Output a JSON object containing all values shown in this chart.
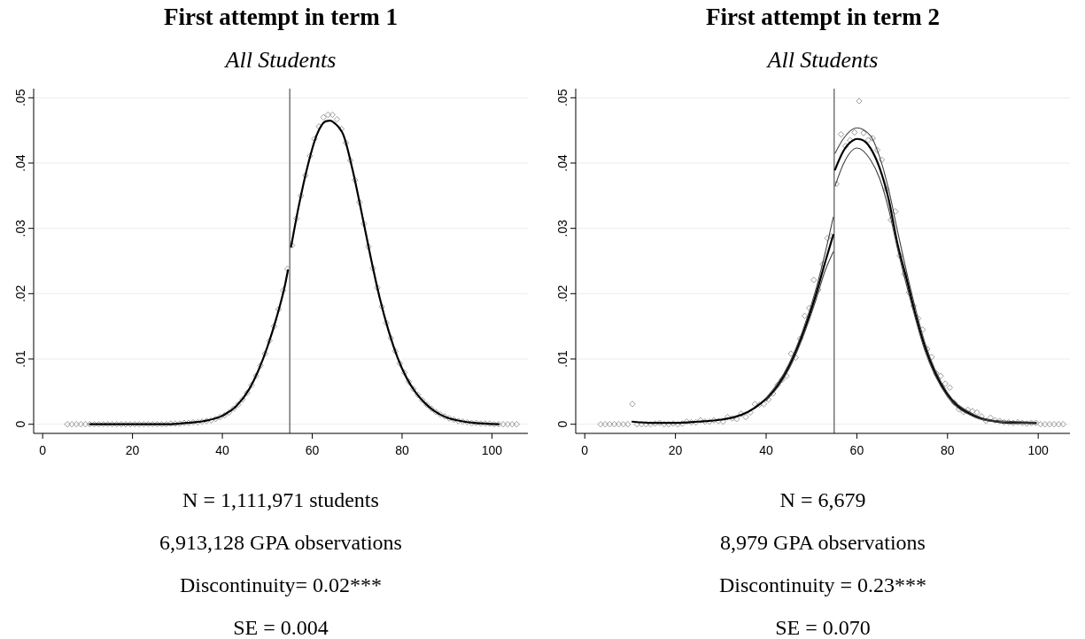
{
  "chart_data": [
    {
      "type": "scatter",
      "title": "First attempt in term 1",
      "subtitle": "All Students",
      "grid": "y",
      "xlim": [
        -2,
        108
      ],
      "ylim": [
        -0.0014,
        0.0514
      ],
      "xticks": [
        0,
        20,
        40,
        60,
        80,
        100
      ],
      "yticks": [
        {
          "value": 0,
          "label": "0"
        },
        {
          "value": 0.01,
          "label": ".01"
        },
        {
          "value": 0.02,
          "label": ".02"
        },
        {
          "value": 0.03,
          "label": ".03"
        },
        {
          "value": 0.04,
          "label": ".04"
        },
        {
          "value": 0.05,
          "label": ".05"
        }
      ],
      "ref_lines": [
        {
          "axis": "x",
          "value": 55,
          "color": "#606060"
        }
      ],
      "annotations": [
        "N = 1,111,971 students",
        "6,913,128 GPA observations",
        "Discontinuity= 0.02***",
        "SE = 0.004"
      ],
      "series": [
        {
          "marker": "diamond",
          "color": "#909090",
          "x": [
            5.5,
            6.5,
            7.5,
            8.5,
            9.5,
            10.5,
            11.5,
            12.5,
            13.5,
            14.5,
            15.5,
            16.5,
            17.5,
            18.5,
            19.5,
            20.5,
            21.5,
            22.5,
            23.5,
            24.5,
            25.5,
            26.5,
            27.5,
            28.5,
            29.5,
            30.5,
            31.5,
            32.5,
            33.5,
            34.5,
            35.5,
            36.5,
            37.5,
            38.5,
            39.5,
            40.5,
            41.5,
            42.5,
            43.5,
            44.5,
            45.5,
            46.5,
            47.5,
            48.5,
            49.5,
            50.5,
            51.5,
            52.5,
            53.5,
            54.5,
            55.5,
            56.5,
            57.5,
            58.5,
            59.5,
            60.5,
            61.5,
            62.5,
            63.5,
            64.5,
            65.5,
            66.5,
            67.5,
            68.5,
            69.5,
            70.5,
            71.5,
            72.5,
            73.5,
            74.5,
            75.5,
            76.5,
            77.5,
            78.5,
            79.5,
            80.5,
            81.5,
            82.5,
            83.5,
            84.5,
            85.5,
            86.5,
            87.5,
            88.5,
            89.5,
            90.5,
            91.5,
            92.5,
            93.5,
            94.5,
            95.5,
            96.5,
            97.5,
            98.5,
            99.5,
            100.5,
            101.5,
            102.5,
            103.5,
            104.5,
            105.5
          ],
          "values": [
            0,
            0,
            0,
            0,
            0,
            0,
            0,
            0,
            0,
            0,
            0,
            0,
            0,
            0,
            0,
            0,
            0,
            0,
            0,
            0,
            0,
            0,
            0,
            0.0001,
            0.0001,
            0.0001,
            0.0002,
            0.0002,
            0.0003,
            0.0003,
            0.0004,
            0.0005,
            0.0006,
            0.0008,
            0.0011,
            0.0014,
            0.0018,
            0.0024,
            0.003,
            0.0038,
            0.0048,
            0.006,
            0.0074,
            0.009,
            0.0108,
            0.0128,
            0.015,
            0.0176,
            0.0205,
            0.0238,
            0.0274,
            0.0315,
            0.035,
            0.0381,
            0.0411,
            0.0437,
            0.0456,
            0.047,
            0.0474,
            0.0474,
            0.0467,
            0.0452,
            0.0431,
            0.0404,
            0.0374,
            0.034,
            0.0307,
            0.0272,
            0.0239,
            0.0209,
            0.018,
            0.0155,
            0.0132,
            0.0112,
            0.0093,
            0.0079,
            0.0065,
            0.0054,
            0.0045,
            0.0037,
            0.003,
            0.0024,
            0.0019,
            0.0015,
            0.0012,
            0.0009,
            0.0007,
            0.0005,
            0.0004,
            0.0003,
            0.0002,
            0.0002,
            0.0001,
            0.0001,
            0.0001,
            0,
            0,
            0,
            0,
            0,
            0
          ]
        },
        {
          "type": "line",
          "color": "#000000",
          "x": [
            10.5,
            20,
            28,
            32,
            36,
            40,
            43,
            46,
            48,
            50,
            52,
            54,
            54.6
          ],
          "values": [
            0,
            0,
            0,
            0.0002,
            0.0005,
            0.0013,
            0.0027,
            0.0054,
            0.0082,
            0.0118,
            0.0162,
            0.0215,
            0.0236
          ]
        },
        {
          "type": "line",
          "color": "#000000",
          "x": [
            55.3,
            57,
            59,
            61,
            63,
            64,
            65,
            67,
            69,
            71,
            73,
            75,
            77,
            79,
            81,
            83,
            85,
            87,
            90,
            93,
            96,
            101.5
          ],
          "values": [
            0.0272,
            0.0334,
            0.0396,
            0.0443,
            0.0464,
            0.0465,
            0.0461,
            0.0442,
            0.0389,
            0.0324,
            0.0256,
            0.0194,
            0.0143,
            0.0102,
            0.0071,
            0.0049,
            0.0033,
            0.0021,
            0.001,
            0.0005,
            0.0002,
            0
          ]
        }
      ]
    },
    {
      "type": "scatter",
      "title": "First attempt in term 2",
      "subtitle": "All Students",
      "grid": "y",
      "xlim": [
        -2,
        107
      ],
      "ylim": [
        -0.0014,
        0.0514
      ],
      "xticks": [
        0,
        20,
        40,
        60,
        80,
        100
      ],
      "yticks": [
        {
          "value": 0,
          "label": "0"
        },
        {
          "value": 0.01,
          "label": ".01"
        },
        {
          "value": 0.02,
          "label": ".02"
        },
        {
          "value": 0.03,
          "label": ".03"
        },
        {
          "value": 0.04,
          "label": ".04"
        },
        {
          "value": 0.05,
          "label": ".05"
        }
      ],
      "ref_lines": [
        {
          "axis": "x",
          "value": 55,
          "color": "#606060"
        }
      ],
      "annotations": [
        "N = 6,679",
        "8,979 GPA observations",
        "Discontinuity = 0.23***",
        "SE = 0.070"
      ],
      "series": [
        {
          "marker": "diamond",
          "color": "#909090",
          "x": [
            3.5,
            4.5,
            5.5,
            6.5,
            7.5,
            8.5,
            9.5,
            10.5,
            11.5,
            12.5,
            13.5,
            14.5,
            15.5,
            16.5,
            17.5,
            18.5,
            19.5,
            20.5,
            21.5,
            22.5,
            23.5,
            24.5,
            25.5,
            26.5,
            27.5,
            28.5,
            29.5,
            30.5,
            31.5,
            32.5,
            33.5,
            34.5,
            35.5,
            36.5,
            37.5,
            38.5,
            39.5,
            40.5,
            41.5,
            42.5,
            43.5,
            44.5,
            45.5,
            46.5,
            47.5,
            48.5,
            49.5,
            50.5,
            51.5,
            52.5,
            53.5,
            54.5,
            55.5,
            56.5,
            57.5,
            58.5,
            59.5,
            60.5,
            61.5,
            62.5,
            63.5,
            64.5,
            65.5,
            66.5,
            67.5,
            68.5,
            69.5,
            70.5,
            71.5,
            72.5,
            73.5,
            74.5,
            75.5,
            76.5,
            77.5,
            78.5,
            79.5,
            80.5,
            81.5,
            82.5,
            83.5,
            84.5,
            85.5,
            86.5,
            87.5,
            88.5,
            89.5,
            90.5,
            91.5,
            92.5,
            93.5,
            94.5,
            95.5,
            96.5,
            97.5,
            98.5,
            99.5,
            100.5,
            101.5,
            102.5,
            103.5,
            104.5,
            105.5
          ],
          "values": [
            0,
            0,
            0,
            0,
            0,
            0,
            0,
            0.0031,
            0,
            0,
            0,
            0,
            0.0001,
            0.0002,
            0,
            0,
            0.0001,
            0,
            0.0001,
            0.0004,
            0.0003,
            0.0003,
            0.0006,
            0.0004,
            0.0004,
            0.0006,
            0.0005,
            0.0004,
            0.0011,
            0.0009,
            0.0008,
            0.0016,
            0.0011,
            0.0018,
            0.0031,
            0.003,
            0.0031,
            0.0038,
            0.0047,
            0.006,
            0.0068,
            0.0074,
            0.0108,
            0.0102,
            0.0131,
            0.0166,
            0.0178,
            0.0221,
            0.0206,
            0.0245,
            0.0285,
            0.0288,
            0.0368,
            0.0444,
            0.0426,
            0.0435,
            0.0447,
            0.0495,
            0.0446,
            0.0435,
            0.0438,
            0.042,
            0.0405,
            0.036,
            0.0313,
            0.0326,
            0.0258,
            0.023,
            0.0202,
            0.0181,
            0.0162,
            0.0145,
            0.0115,
            0.0103,
            0.0078,
            0.0074,
            0.0062,
            0.0056,
            0.0033,
            0.0023,
            0.0019,
            0.0022,
            0.002,
            0.0018,
            0.0012,
            0.0005,
            0.001,
            0.0006,
            0.0005,
            0.0003,
            0.0003,
            0.0002,
            0.0003,
            0.0002,
            0.0001,
            0.0002,
            0.0002,
            0,
            0,
            0,
            0,
            0,
            0
          ]
        },
        {
          "type": "line",
          "color": "#000000",
          "x": [
            10.5,
            15,
            20,
            25,
            30,
            33,
            36,
            39,
            42,
            45,
            48,
            51,
            53,
            54.8
          ],
          "values": [
            0.0004,
            0.0002,
            0.0002,
            0.0004,
            0.0007,
            0.0011,
            0.0019,
            0.0033,
            0.0054,
            0.0088,
            0.0137,
            0.0199,
            0.0248,
            0.029
          ]
        },
        {
          "type": "line",
          "color": "#404040",
          "x": [
            40,
            45,
            48,
            51,
            53,
            54.8
          ],
          "values": [
            0.004,
            0.0092,
            0.0142,
            0.0207,
            0.0262,
            0.0317
          ]
        },
        {
          "type": "line",
          "color": "#404040",
          "x": [
            40,
            45,
            48,
            51,
            53,
            54.8
          ],
          "values": [
            0.0036,
            0.0084,
            0.0132,
            0.0191,
            0.0235,
            0.0264
          ]
        },
        {
          "type": "line",
          "color": "#000000",
          "x": [
            55.2,
            57,
            59,
            60,
            61,
            63,
            65,
            67,
            69,
            71,
            73,
            75,
            77,
            79,
            81,
            83,
            85,
            87,
            90,
            94,
            99.5
          ],
          "values": [
            0.039,
            0.0418,
            0.0434,
            0.0437,
            0.0436,
            0.0423,
            0.0393,
            0.0345,
            0.0275,
            0.0222,
            0.0166,
            0.0119,
            0.0083,
            0.0056,
            0.0037,
            0.0024,
            0.0016,
            0.001,
            0.0005,
            0.0002,
            0.0002
          ]
        },
        {
          "type": "line",
          "color": "#404040",
          "x": [
            55.2,
            57,
            60,
            63,
            65,
            67,
            69,
            72,
            75,
            80,
            85,
            90,
            99.5
          ],
          "values": [
            0.0415,
            0.0437,
            0.0454,
            0.0442,
            0.041,
            0.036,
            0.0295,
            0.0203,
            0.0125,
            0.0048,
            0.0018,
            0.0006,
            0.0003
          ]
        },
        {
          "type": "line",
          "color": "#404040",
          "x": [
            55.2,
            57,
            60,
            63,
            65,
            67,
            69,
            72,
            75,
            80,
            85,
            90,
            99.5
          ],
          "values": [
            0.0365,
            0.0398,
            0.0423,
            0.0405,
            0.0377,
            0.033,
            0.0268,
            0.0186,
            0.0113,
            0.0042,
            0.0014,
            0.0004,
            0.0001
          ]
        }
      ]
    }
  ]
}
